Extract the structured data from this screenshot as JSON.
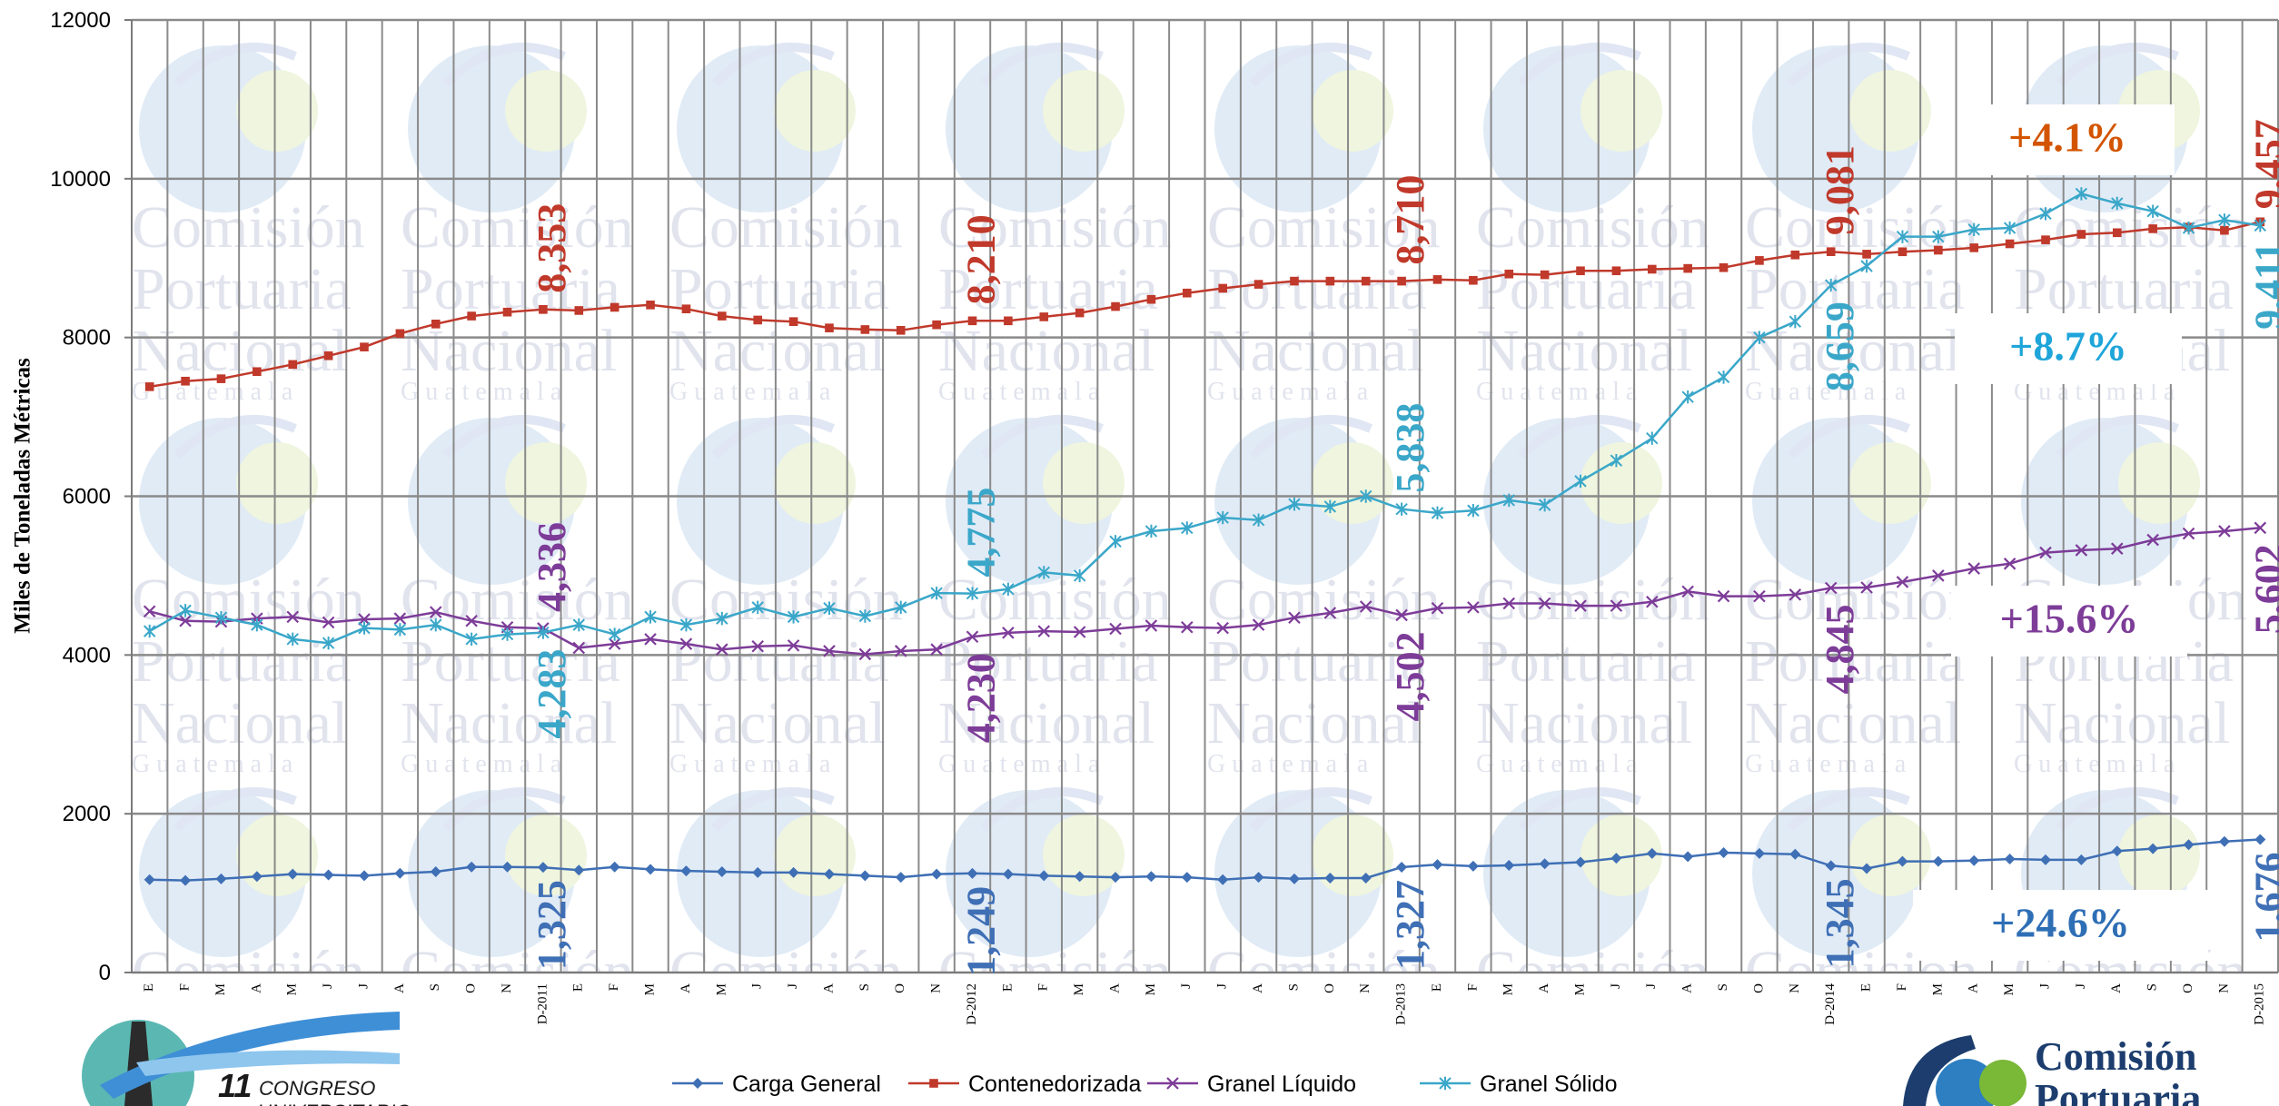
{
  "chart_data": {
    "type": "line",
    "ylabel": "Miles de Toneladas Métricas",
    "ylim": [
      0,
      12000
    ],
    "yticks": [
      0,
      2000,
      4000,
      6000,
      8000,
      10000,
      12000
    ],
    "grid": true,
    "legend_position": "bottom",
    "categories": [
      "E",
      "F",
      "M",
      "A",
      "M",
      "J",
      "J",
      "A",
      "S",
      "O",
      "N",
      "D-2011",
      "E",
      "F",
      "M",
      "A",
      "M",
      "J",
      "J",
      "A",
      "S",
      "O",
      "N",
      "D-2012",
      "E",
      "F",
      "M",
      "A",
      "M",
      "J",
      "J",
      "A",
      "S",
      "O",
      "N",
      "D-2013",
      "E",
      "F",
      "M",
      "A",
      "M",
      "J",
      "J",
      "A",
      "S",
      "O",
      "N",
      "D-2014",
      "E",
      "F",
      "M",
      "A",
      "M",
      "J",
      "J",
      "A",
      "S",
      "O",
      "N",
      "D-2015"
    ],
    "series": [
      {
        "name": "Carga General",
        "color": "#3f6fb5",
        "marker": "diamond",
        "values": [
          1170,
          1160,
          1180,
          1210,
          1240,
          1230,
          1220,
          1250,
          1270,
          1330,
          1330,
          1325,
          1290,
          1330,
          1300,
          1280,
          1270,
          1260,
          1260,
          1240,
          1220,
          1200,
          1240,
          1249,
          1240,
          1220,
          1210,
          1200,
          1210,
          1200,
          1170,
          1200,
          1180,
          1190,
          1190,
          1327,
          1360,
          1340,
          1350,
          1370,
          1390,
          1440,
          1500,
          1460,
          1510,
          1500,
          1490,
          1345,
          1310,
          1400,
          1400,
          1410,
          1430,
          1420,
          1420,
          1530,
          1560,
          1610,
          1650,
          1676
        ]
      },
      {
        "name": "Contenedorizada",
        "color": "#c0392b",
        "marker": "square",
        "values": [
          7380,
          7450,
          7480,
          7570,
          7660,
          7770,
          7880,
          8050,
          8170,
          8270,
          8320,
          8353,
          8340,
          8380,
          8410,
          8360,
          8270,
          8220,
          8200,
          8120,
          8100,
          8090,
          8160,
          8210,
          8210,
          8260,
          8310,
          8390,
          8480,
          8560,
          8620,
          8670,
          8710,
          8710,
          8710,
          8710,
          8730,
          8720,
          8800,
          8790,
          8840,
          8840,
          8860,
          8870,
          8880,
          8970,
          9040,
          9081,
          9050,
          9080,
          9100,
          9130,
          9180,
          9230,
          9300,
          9320,
          9370,
          9390,
          9350,
          9457
        ]
      },
      {
        "name": "Granel Líquido",
        "color": "#7d3c98",
        "marker": "x",
        "values": [
          4550,
          4430,
          4420,
          4460,
          4480,
          4410,
          4450,
          4460,
          4540,
          4430,
          4350,
          4336,
          4090,
          4140,
          4200,
          4140,
          4070,
          4110,
          4120,
          4050,
          4010,
          4050,
          4070,
          4230,
          4280,
          4300,
          4290,
          4330,
          4370,
          4350,
          4340,
          4380,
          4470,
          4530,
          4610,
          4502,
          4590,
          4600,
          4650,
          4650,
          4620,
          4620,
          4670,
          4800,
          4740,
          4740,
          4760,
          4845,
          4850,
          4920,
          5000,
          5090,
          5150,
          5290,
          5320,
          5340,
          5450,
          5530,
          5560,
          5602
        ]
      },
      {
        "name": "Granel Sólido",
        "color": "#3aa7c9",
        "marker": "star",
        "values": [
          4300,
          4560,
          4470,
          4380,
          4200,
          4150,
          4340,
          4320,
          4380,
          4200,
          4260,
          4283,
          4380,
          4260,
          4480,
          4380,
          4460,
          4600,
          4480,
          4590,
          4490,
          4600,
          4780,
          4775,
          4830,
          5040,
          5000,
          5430,
          5560,
          5600,
          5730,
          5700,
          5900,
          5870,
          6000,
          5838,
          5790,
          5820,
          5950,
          5890,
          6190,
          6450,
          6730,
          7250,
          7500,
          8000,
          8200,
          8659,
          8900,
          9270,
          9270,
          9360,
          9380,
          9560,
          9810,
          9690,
          9590,
          9380,
          9480,
          9411
        ]
      }
    ],
    "data_labels": [
      {
        "series": 0,
        "index": 11,
        "text": "1,325"
      },
      {
        "series": 0,
        "index": 23,
        "text": "1,249"
      },
      {
        "series": 0,
        "index": 35,
        "text": "1,327"
      },
      {
        "series": 0,
        "index": 47,
        "text": "1,345"
      },
      {
        "series": 0,
        "index": 59,
        "text": "1,676"
      },
      {
        "series": 1,
        "index": 11,
        "text": "8,353"
      },
      {
        "series": 1,
        "index": 23,
        "text": "8,210"
      },
      {
        "series": 1,
        "index": 35,
        "text": "8,710"
      },
      {
        "series": 1,
        "index": 47,
        "text": "9,081"
      },
      {
        "series": 1,
        "index": 59,
        "text": "9,457"
      },
      {
        "series": 2,
        "index": 11,
        "text": "4,336"
      },
      {
        "series": 2,
        "index": 23,
        "text": "4,230"
      },
      {
        "series": 2,
        "index": 35,
        "text": "4,502"
      },
      {
        "series": 2,
        "index": 47,
        "text": "4,845"
      },
      {
        "series": 2,
        "index": 59,
        "text": "5,602"
      },
      {
        "series": 3,
        "index": 11,
        "text": "4,283"
      },
      {
        "series": 3,
        "index": 23,
        "text": "4,775"
      },
      {
        "series": 3,
        "index": 35,
        "text": "5,838"
      },
      {
        "series": 3,
        "index": 47,
        "text": "8,659"
      },
      {
        "series": 3,
        "index": 59,
        "text": "9,411"
      }
    ],
    "growth_annotations": [
      {
        "series": 1,
        "text": "+4.1%"
      },
      {
        "series": 3,
        "text": "+8.7%"
      },
      {
        "series": 2,
        "text": "+15.6%"
      },
      {
        "series": 0,
        "text": "+24.6%"
      }
    ]
  },
  "watermark": {
    "line1": "Comisión",
    "line2": "Portuaria",
    "line3": "Nacional",
    "line4": "G u a t e m a l a"
  },
  "logos": {
    "congreso_number": "11",
    "congreso_text": "CONGRESO",
    "congreso_text2": "UNIVERSITARIO",
    "cpn_line1": "Comisión",
    "cpn_line2": "Portuaria"
  }
}
